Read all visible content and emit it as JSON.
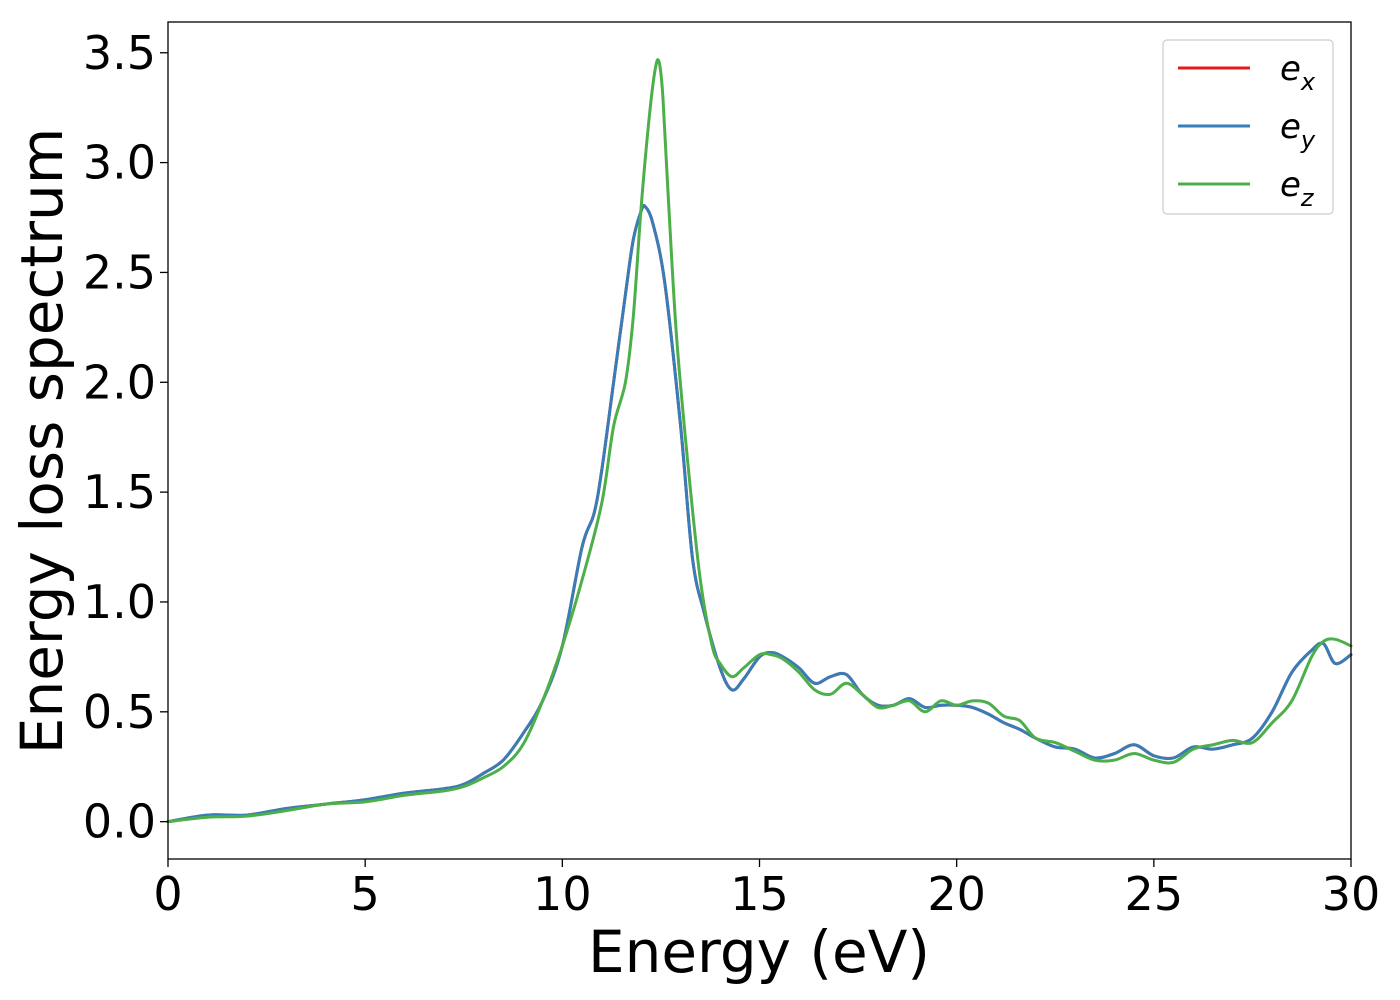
{
  "chart_data": {
    "type": "line",
    "title": "",
    "xlabel": "Energy (eV)",
    "ylabel": "Energy loss spectrum",
    "xlim": [
      0,
      30
    ],
    "ylim": [
      -0.17,
      3.64
    ],
    "xticks": [
      0,
      5,
      10,
      15,
      20,
      25,
      30
    ],
    "xtick_labels": [
      "0",
      "5",
      "10",
      "15",
      "20",
      "25",
      "30"
    ],
    "yticks": [
      0.0,
      0.5,
      1.0,
      1.5,
      2.0,
      2.5,
      3.0,
      3.5
    ],
    "ytick_labels": [
      "0.0",
      "0.5",
      "1.0",
      "1.5",
      "2.0",
      "2.5",
      "3.0",
      "3.5"
    ],
    "grid": false,
    "legend": {
      "placement": "top-right",
      "entries": [
        {
          "base": "e",
          "sub": "x"
        },
        {
          "base": "e",
          "sub": "y"
        },
        {
          "base": "e",
          "sub": "z"
        }
      ]
    },
    "series": [
      {
        "legend_index": 0,
        "color": "#e41a1c",
        "x": [
          0,
          1,
          2,
          3,
          4,
          5,
          6,
          7,
          7.5,
          8,
          8.5,
          9,
          9.5,
          10,
          10.5,
          10.8,
          11,
          11.3,
          11.6,
          11.8,
          12,
          12.1,
          12.3,
          12.6,
          13,
          13.3,
          13.6,
          14,
          14.3,
          14.6,
          15,
          15.3,
          15.6,
          16,
          16.4,
          16.8,
          17.2,
          17.6,
          18,
          18.4,
          18.8,
          19.2,
          19.6,
          20,
          20.4,
          20.8,
          21.2,
          21.6,
          22,
          22.5,
          23,
          23.5,
          24,
          24.5,
          25,
          25.5,
          26,
          26.5,
          27,
          27.5,
          28,
          28.5,
          29,
          29.3,
          29.6,
          30
        ],
        "y": [
          0.0,
          0.03,
          0.03,
          0.06,
          0.08,
          0.1,
          0.13,
          0.15,
          0.17,
          0.22,
          0.28,
          0.4,
          0.55,
          0.8,
          1.25,
          1.4,
          1.6,
          2.0,
          2.4,
          2.65,
          2.78,
          2.8,
          2.72,
          2.45,
          1.8,
          1.2,
          0.95,
          0.7,
          0.6,
          0.65,
          0.75,
          0.77,
          0.75,
          0.7,
          0.63,
          0.66,
          0.67,
          0.58,
          0.53,
          0.53,
          0.56,
          0.52,
          0.53,
          0.53,
          0.52,
          0.49,
          0.45,
          0.42,
          0.38,
          0.34,
          0.33,
          0.29,
          0.31,
          0.35,
          0.3,
          0.29,
          0.34,
          0.33,
          0.35,
          0.38,
          0.5,
          0.68,
          0.78,
          0.81,
          0.72,
          0.76
        ]
      },
      {
        "legend_index": 1,
        "color": "#377eb8",
        "x": [
          0,
          1,
          2,
          3,
          4,
          5,
          6,
          7,
          7.5,
          8,
          8.5,
          9,
          9.5,
          10,
          10.5,
          10.8,
          11,
          11.3,
          11.6,
          11.8,
          12,
          12.1,
          12.3,
          12.6,
          13,
          13.3,
          13.6,
          14,
          14.3,
          14.6,
          15,
          15.3,
          15.6,
          16,
          16.4,
          16.8,
          17.2,
          17.6,
          18,
          18.4,
          18.8,
          19.2,
          19.6,
          20,
          20.4,
          20.8,
          21.2,
          21.6,
          22,
          22.5,
          23,
          23.5,
          24,
          24.5,
          25,
          25.5,
          26,
          26.5,
          27,
          27.5,
          28,
          28.5,
          29,
          29.3,
          29.6,
          30
        ],
        "y": [
          0.0,
          0.03,
          0.03,
          0.06,
          0.08,
          0.1,
          0.13,
          0.15,
          0.17,
          0.22,
          0.28,
          0.4,
          0.55,
          0.8,
          1.25,
          1.4,
          1.6,
          2.0,
          2.4,
          2.65,
          2.78,
          2.8,
          2.72,
          2.45,
          1.8,
          1.2,
          0.95,
          0.7,
          0.6,
          0.65,
          0.75,
          0.77,
          0.75,
          0.7,
          0.63,
          0.66,
          0.67,
          0.58,
          0.53,
          0.53,
          0.56,
          0.52,
          0.53,
          0.53,
          0.52,
          0.49,
          0.45,
          0.42,
          0.38,
          0.34,
          0.33,
          0.29,
          0.31,
          0.35,
          0.3,
          0.29,
          0.34,
          0.33,
          0.35,
          0.38,
          0.5,
          0.68,
          0.78,
          0.81,
          0.72,
          0.76
        ]
      },
      {
        "legend_index": 2,
        "color": "#4daf4a",
        "x": [
          0,
          1,
          2,
          3,
          4,
          5,
          6,
          7,
          7.5,
          8,
          8.5,
          9,
          9.5,
          10,
          10.5,
          11,
          11.3,
          11.6,
          11.8,
          12,
          12.2,
          12.35,
          12.45,
          12.55,
          12.7,
          12.9,
          13.2,
          13.5,
          13.8,
          14,
          14.3,
          14.6,
          15,
          15.3,
          15.6,
          16,
          16.4,
          16.8,
          17.2,
          17.6,
          18,
          18.4,
          18.8,
          19.2,
          19.6,
          20,
          20.4,
          20.8,
          21.2,
          21.6,
          22,
          22.5,
          23,
          23.5,
          24,
          24.5,
          25,
          25.5,
          26,
          26.5,
          27,
          27.5,
          28,
          28.5,
          29,
          29.3,
          29.6,
          30
        ],
        "y": [
          0.0,
          0.02,
          0.025,
          0.05,
          0.08,
          0.09,
          0.12,
          0.14,
          0.16,
          0.2,
          0.25,
          0.35,
          0.55,
          0.8,
          1.1,
          1.45,
          1.8,
          2.0,
          2.3,
          2.8,
          3.2,
          3.42,
          3.46,
          3.3,
          2.8,
          2.2,
          1.6,
          1.1,
          0.8,
          0.72,
          0.66,
          0.7,
          0.76,
          0.76,
          0.74,
          0.68,
          0.6,
          0.58,
          0.63,
          0.58,
          0.52,
          0.53,
          0.55,
          0.5,
          0.55,
          0.53,
          0.55,
          0.54,
          0.48,
          0.46,
          0.38,
          0.36,
          0.32,
          0.28,
          0.28,
          0.31,
          0.28,
          0.27,
          0.33,
          0.35,
          0.37,
          0.36,
          0.45,
          0.55,
          0.75,
          0.82,
          0.83,
          0.8
        ]
      }
    ]
  }
}
